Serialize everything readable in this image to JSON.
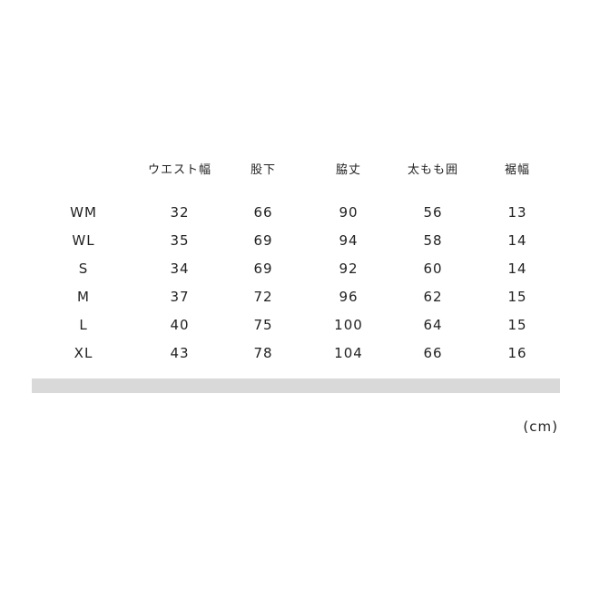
{
  "table": {
    "headers": [
      "",
      "ウエスト幅",
      "股下",
      "脇丈",
      "太もも囲",
      "裾幅"
    ],
    "rows": [
      [
        "WM",
        "32",
        "66",
        "90",
        "56",
        "13"
      ],
      [
        "WL",
        "35",
        "69",
        "94",
        "58",
        "14"
      ],
      [
        "S",
        "34",
        "69",
        "92",
        "60",
        "14"
      ],
      [
        "M",
        "37",
        "72",
        "96",
        "62",
        "15"
      ],
      [
        "L",
        "40",
        "75",
        "100",
        "64",
        "15"
      ],
      [
        "XL",
        "43",
        "78",
        "104",
        "66",
        "16"
      ]
    ]
  },
  "unit": "(cm)",
  "colors": {
    "divider_bar": "#d9d9d9",
    "text": "#222222"
  }
}
